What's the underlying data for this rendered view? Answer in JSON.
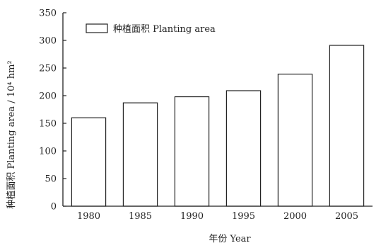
{
  "chart_data": {
    "type": "bar",
    "categories": [
      "1980",
      "1985",
      "1990",
      "1995",
      "2000",
      "2005"
    ],
    "series": [
      {
        "name": "种植面积 Planting area",
        "values": [
          160,
          187,
          198,
          209,
          239,
          291
        ]
      }
    ],
    "xlabel": "年份 Year",
    "ylabel": "种植面积 Planting area / 10⁴ hm²",
    "ylim": [
      0,
      350
    ],
    "yticks": [
      0,
      50,
      100,
      150,
      200,
      250,
      300,
      350
    ],
    "grid": false,
    "legend_position": "top-left",
    "colors": {
      "bar_fill": "#ffffff",
      "bar_stroke": "#222222",
      "axis": "#222222",
      "text": "#222222"
    }
  }
}
